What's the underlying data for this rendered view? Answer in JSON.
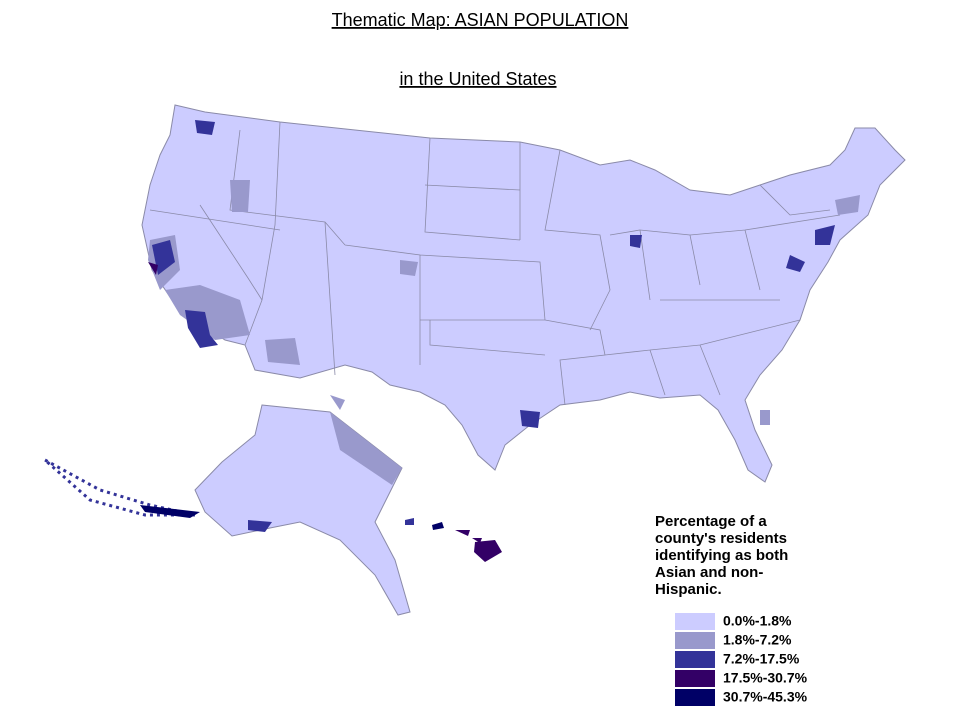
{
  "title": {
    "line1": "Thematic Map: ASIAN POPULATION",
    "line2": "in the United States"
  },
  "legend": {
    "title_lines": [
      "Percentage of a",
      "county's residents",
      "identifying as both",
      "Asian and non-",
      "Hispanic."
    ],
    "items": [
      {
        "label": "0.0%-1.8%",
        "color": "#ccccff"
      },
      {
        "label": "1.8%-7.2%",
        "color": "#9999cc"
      },
      {
        "label": "7.2%-17.5%",
        "color": "#333399"
      },
      {
        "label": "17.5%-30.7%",
        "color": "#330066"
      },
      {
        "label": "30.7%-45.3%",
        "color": "#000066"
      }
    ]
  }
}
